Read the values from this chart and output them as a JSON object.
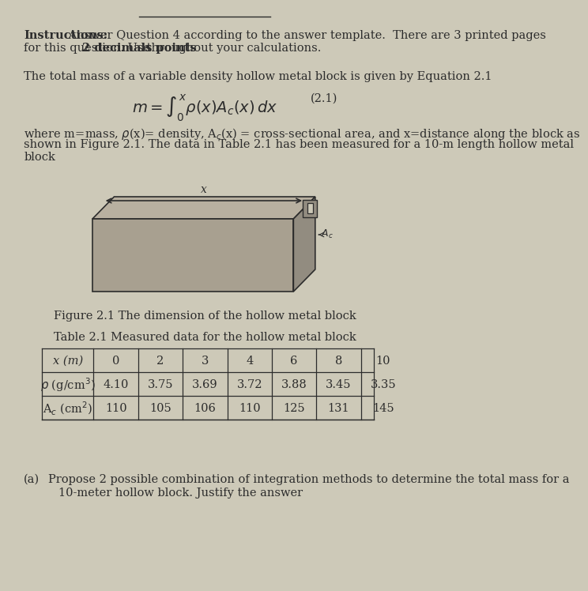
{
  "bg_color": "#cdc9b8",
  "text_color": "#2c2c2c",
  "title_line": "___________________________________",
  "instructions_bold": "Instructions:",
  "instructions_text": " Answer Question 4 according to the answer template.  There are 3 printed pages\nfor this question. Use ",
  "instructions_bold2": "2 decimals points",
  "instructions_text2": " throughout your calculations.",
  "para1": "The total mass of a variable density hollow metal block is given by Equation 2.1",
  "equation_label": "(2.1)",
  "para2": "where m=mass, ρ(x)= density, Aₑ(x) = cross-sectional area, and x=distance along the block as\nshown in Figure 2.1. The data in Table 2.1 has been measured for a 10-m length hollow metal\nblock",
  "fig_caption": "Figure 2.1 The dimension of the hollow metal block",
  "table_title": "Table 2.1 Measured data for the hollow metal block",
  "table_headers": [
    "x (m)",
    "0",
    "2",
    "3",
    "4",
    "6",
    "8",
    "10"
  ],
  "table_row1_header": "ρ (g/cm³)",
  "table_row1_data": [
    "4.10",
    "3.75",
    "3.69",
    "3.72",
    "3.88",
    "3.45",
    "3.35"
  ],
  "table_row2_header": "Aₑ (cm²)",
  "table_row2_data": [
    "110",
    "105",
    "106",
    "110",
    "125",
    "131",
    "145"
  ],
  "part_a_label": "(a)",
  "part_a_text": "Propose 2 possible combination of integration methods to determine the total mass for a\n10-meter hollow block. Justify the answer",
  "block_fill_color": "#a8a090",
  "block_edge_color": "#2c2c2c",
  "table_line_color": "#2c2c2c",
  "font_size_body": 10.5,
  "font_size_table": 10.5,
  "font_size_caption": 10.5
}
